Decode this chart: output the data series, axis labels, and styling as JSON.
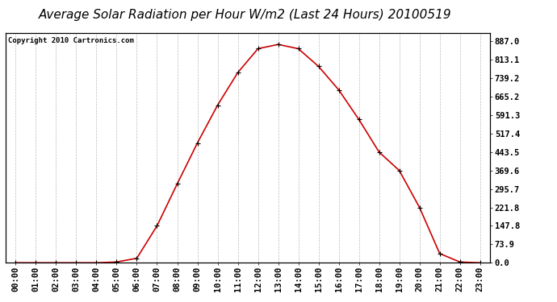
{
  "title": "Average Solar Radiation per Hour W/m2 (Last 24 Hours) 20100519",
  "copyright": "Copyright 2010 Cartronics.com",
  "x_labels": [
    "00:00",
    "01:00",
    "02:00",
    "03:00",
    "04:00",
    "05:00",
    "06:00",
    "07:00",
    "08:00",
    "09:00",
    "10:00",
    "11:00",
    "12:00",
    "13:00",
    "14:00",
    "15:00",
    "16:00",
    "17:00",
    "18:00",
    "19:00",
    "20:00",
    "21:00",
    "22:00",
    "23:00"
  ],
  "y_values": [
    0.0,
    0.0,
    0.0,
    0.0,
    0.0,
    3.0,
    18.0,
    147.8,
    316.0,
    480.0,
    631.5,
    762.0,
    858.0,
    875.0,
    858.0,
    787.0,
    693.0,
    574.0,
    443.5,
    369.6,
    221.8,
    36.9,
    3.0,
    0.0
  ],
  "line_color": "#cc0000",
  "marker_color": "#000000",
  "background_color": "#ffffff",
  "plot_bg_color": "#ffffff",
  "grid_color": "#bbbbbb",
  "title_fontsize": 11,
  "copyright_fontsize": 6.5,
  "tick_fontsize": 7.5,
  "ytick_values": [
    0.0,
    73.9,
    147.8,
    221.8,
    295.7,
    369.6,
    443.5,
    517.4,
    591.3,
    665.2,
    739.2,
    813.1,
    887.0
  ],
  "ylim": [
    0,
    920
  ]
}
